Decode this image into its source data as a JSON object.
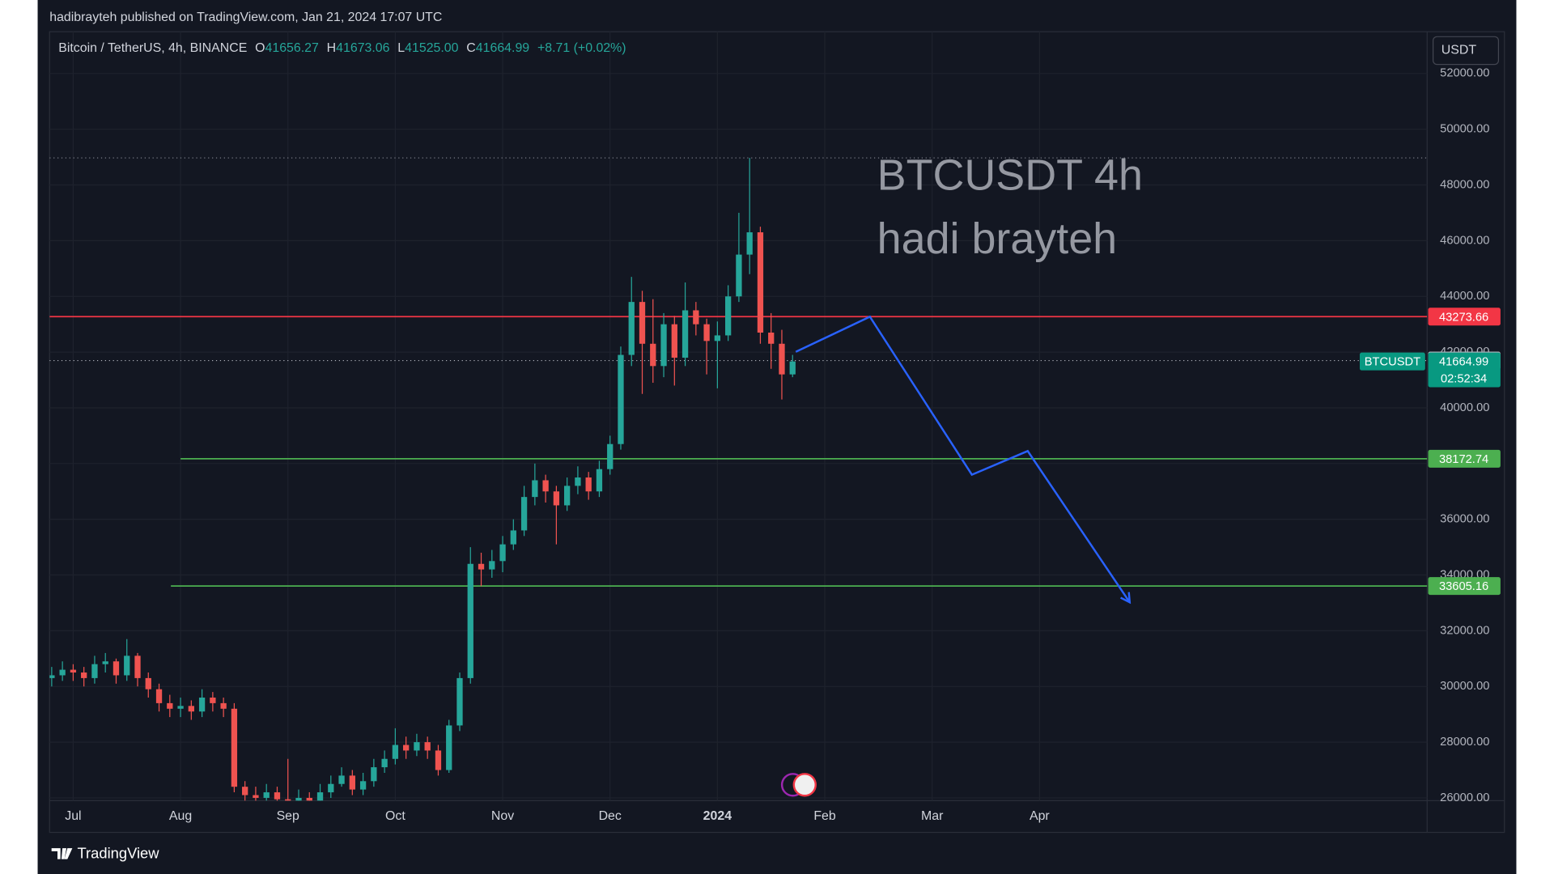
{
  "header": {
    "publisher": "hadibrayteh published on TradingView.com, Jan 21, 2024 17:07 UTC",
    "currency_button": "USDT",
    "footer": "TradingView"
  },
  "chart_data": {
    "type": "candlestick",
    "legend": {
      "symbol": "Bitcoin / TetherUS, 4h, BINANCE",
      "items": [
        {
          "key": "O",
          "value": "41656.27"
        },
        {
          "key": "H",
          "value": "41673.06"
        },
        {
          "key": "L",
          "value": "41525.00"
        },
        {
          "key": "C",
          "value": "41664.99"
        }
      ],
      "change": "+8.71 (+0.02%)"
    },
    "annotations": [
      "BTCUSDT 4h",
      "hadi brayteh"
    ],
    "up_color": "#26a69a",
    "down_color": "#ef5350",
    "candles": {
      "x": [
        -0.2,
        -0.1,
        0,
        0.1,
        0.2,
        0.3,
        0.4,
        0.5,
        0.6,
        0.7,
        0.8,
        0.9,
        1,
        1.1,
        1.2,
        1.3,
        1.4,
        1.5,
        1.6,
        1.7,
        1.8,
        1.9,
        2,
        2.1,
        2.2,
        2.3,
        2.4,
        2.5,
        2.6,
        2.7,
        2.8,
        2.9,
        3,
        3.1,
        3.2,
        3.3,
        3.4,
        3.5,
        3.6,
        3.7,
        3.8,
        3.9,
        4,
        4.1,
        4.2,
        4.3,
        4.4,
        4.5,
        4.6,
        4.7,
        4.8,
        4.9,
        5,
        5.1,
        5.2,
        5.3,
        5.4,
        5.5,
        5.6,
        5.7,
        5.8,
        5.9,
        6,
        6.1,
        6.2,
        6.3,
        6.4,
        6.5,
        6.6,
        6.7
      ],
      "open": [
        30300,
        30400,
        30600,
        30500,
        30300,
        30800,
        30900,
        30400,
        31100,
        30300,
        29900,
        29400,
        29200,
        29300,
        29100,
        29600,
        29400,
        29200,
        26400,
        26100,
        26000,
        26200,
        25950,
        25900,
        26000,
        25900,
        26200,
        26500,
        26800,
        26300,
        26600,
        27100,
        27400,
        27900,
        27700,
        28000,
        27700,
        27000,
        28600,
        30300,
        34400,
        34200,
        34500,
        35100,
        35600,
        36800,
        37400,
        37000,
        36500,
        37200,
        37500,
        37000,
        37800,
        38700,
        41900,
        43800,
        42300,
        41500,
        43000,
        41800,
        43500,
        43000,
        42400,
        42600,
        44000,
        45500,
        46300,
        42700,
        42300,
        41200
      ],
      "high": [
        30700,
        30900,
        30800,
        30700,
        31100,
        31200,
        31000,
        31700,
        31200,
        30500,
        30100,
        29700,
        29600,
        29500,
        29900,
        29800,
        29600,
        29400,
        26600,
        26400,
        26500,
        26400,
        27400,
        26300,
        26200,
        26500,
        26800,
        27100,
        27000,
        26900,
        27400,
        27700,
        28500,
        28200,
        28300,
        28200,
        27900,
        28800,
        30500,
        35000,
        34800,
        34900,
        35400,
        36000,
        37200,
        38000,
        37600,
        37200,
        37500,
        37900,
        37700,
        38100,
        39000,
        42200,
        44700,
        44200,
        43900,
        43400,
        43300,
        44500,
        43800,
        43200,
        43100,
        44400,
        47000,
        48970,
        46500,
        43400,
        42800,
        41900
      ],
      "low": [
        30000,
        30200,
        30200,
        30000,
        30100,
        30500,
        30100,
        30200,
        30000,
        29600,
        29100,
        28900,
        28900,
        28800,
        28900,
        29100,
        28900,
        26200,
        25900,
        25800,
        25900,
        25700,
        25700,
        25700,
        25700,
        25800,
        26000,
        26400,
        26100,
        26100,
        26400,
        26900,
        27200,
        27400,
        27500,
        27400,
        26800,
        26900,
        28400,
        30100,
        33600,
        33900,
        34100,
        34900,
        35400,
        36500,
        36600,
        35100,
        36300,
        36900,
        36700,
        36800,
        37600,
        38500,
        41500,
        40500,
        40900,
        41100,
        40800,
        41500,
        42600,
        41200,
        40700,
        42400,
        43800,
        44800,
        42300,
        41400,
        40300,
        41100
      ],
      "close": [
        30400,
        30600,
        30500,
        30300,
        30800,
        30900,
        30400,
        31100,
        30300,
        29900,
        29400,
        29200,
        29300,
        29100,
        29600,
        29400,
        29200,
        26400,
        26100,
        26000,
        26200,
        25950,
        25900,
        26000,
        25900,
        26200,
        26500,
        26800,
        26300,
        26600,
        27100,
        27400,
        27900,
        27700,
        28000,
        27700,
        27000,
        28600,
        30300,
        34400,
        34200,
        34500,
        35100,
        35600,
        36800,
        37400,
        37000,
        36500,
        37200,
        37500,
        37000,
        37800,
        38700,
        41900,
        43800,
        42300,
        41500,
        43000,
        41800,
        43500,
        43000,
        42400,
        42600,
        44000,
        45500,
        46300,
        42700,
        42300,
        41200,
        41665
      ]
    },
    "levels": [
      {
        "value": 48970,
        "style": "dotted",
        "color": "#787b86",
        "labeled": false
      },
      {
        "value": 43273.66,
        "style": "solid",
        "color": "#f23645",
        "labeled": true
      },
      {
        "value": 41696.04,
        "style": "dotted",
        "color": "#b2b5be",
        "labeled": true
      },
      {
        "value": 38172.74,
        "style": "solid",
        "color": "#4caf50",
        "labeled": true,
        "x_start": 1.0
      },
      {
        "value": 33605.16,
        "style": "solid",
        "color": "#4caf50",
        "labeled": true,
        "x_start": 0.91
      }
    ],
    "last": {
      "symbol": "BTCUSDT",
      "value": 41664.99,
      "countdown": "02:52:34",
      "color": "#089981"
    },
    "projection": {
      "color": "#2962ff",
      "x": [
        6.73,
        7.42,
        8.37,
        8.89,
        9.84
      ],
      "y": [
        42010,
        43270,
        37600,
        38450,
        33020
      ]
    },
    "xlim": [
      -0.22,
      12.61
    ],
    "xticks": [
      {
        "value": 0,
        "label": "Jul"
      },
      {
        "value": 1,
        "label": "Aug"
      },
      {
        "value": 2,
        "label": "Sep"
      },
      {
        "value": 3,
        "label": "Oct"
      },
      {
        "value": 4,
        "label": "Nov"
      },
      {
        "value": 5,
        "label": "Dec"
      },
      {
        "value": 6,
        "label": "2024",
        "bold": true
      },
      {
        "value": 7,
        "label": "Feb"
      },
      {
        "value": 8,
        "label": "Mar"
      },
      {
        "value": 9,
        "label": "Apr"
      }
    ],
    "ylim": [
      25900,
      53500
    ],
    "yticks": [
      {
        "value": 26000,
        "label": "26000.00"
      },
      {
        "value": 28000,
        "label": "28000.00"
      },
      {
        "value": 30000,
        "label": "30000.00"
      },
      {
        "value": 32000,
        "label": "32000.00"
      },
      {
        "value": 34000,
        "label": "34000.00"
      },
      {
        "value": 36000,
        "label": "36000.00"
      },
      {
        "value": 38000,
        "label": "38000.00"
      },
      {
        "value": 40000,
        "label": "40000.00"
      },
      {
        "value": 42000,
        "label": "42000.00"
      },
      {
        "value": 44000,
        "label": "44000.00"
      },
      {
        "value": 46000,
        "label": "46000.00"
      },
      {
        "value": 48000,
        "label": "48000.00"
      },
      {
        "value": 50000,
        "label": "50000.00"
      },
      {
        "value": 52000,
        "label": "52000.00"
      }
    ],
    "grid": true
  }
}
